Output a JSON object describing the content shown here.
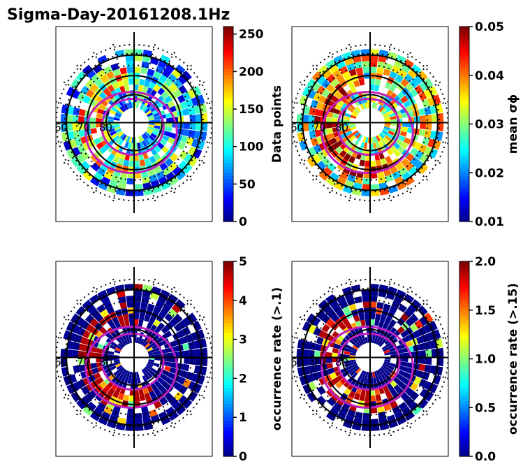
{
  "title": "Sigma-Day-20161208.1Hz",
  "colormap": "jet",
  "colors": {
    "jet": [
      "#00007f",
      "#0000ff",
      "#0080ff",
      "#00ffff",
      "#80ff80",
      "#ffff00",
      "#ff8000",
      "#ff0000",
      "#7f0000"
    ],
    "oval": "#c020c0",
    "grid": "#000000",
    "ocean": "#ffffff"
  },
  "chart_data": [
    {
      "type": "heatmap",
      "projection": "polar-mlat",
      "colorbar_label": "Data points",
      "colorbar_ticks": [
        "0",
        "50",
        "100",
        "150",
        "200",
        "250"
      ],
      "clim": [
        0,
        260
      ],
      "radial_labels": [
        "60",
        "70",
        "80"
      ],
      "dominant_level": 0.35,
      "grid": true
    },
    {
      "type": "heatmap",
      "projection": "polar-mlat",
      "colorbar_label": "mean σϕ",
      "colorbar_ticks": [
        "0.01",
        "0.02",
        "0.03",
        "0.04",
        "0.05"
      ],
      "clim": [
        0.01,
        0.05
      ],
      "radial_labels": [
        "60",
        "70",
        "80"
      ],
      "dominant_level": 0.55,
      "grid": true
    },
    {
      "type": "heatmap",
      "projection": "polar-mlat",
      "colorbar_label": "occurrence rate (>.1)",
      "colorbar_ticks": [
        "0",
        "1",
        "2",
        "3",
        "4",
        "5"
      ],
      "clim": [
        0,
        5
      ],
      "radial_labels": [
        "60",
        "70",
        "80"
      ],
      "dominant_level": 0.03,
      "grid": true
    },
    {
      "type": "heatmap",
      "projection": "polar-mlat",
      "colorbar_label": "occurrence rate (>.15)",
      "colorbar_ticks": [
        "0.0",
        "0.5",
        "1.0",
        "1.5",
        "2.0"
      ],
      "clim": [
        0,
        2
      ],
      "radial_labels": [
        "60",
        "70",
        "80"
      ],
      "dominant_level": 0.02,
      "grid": true
    }
  ]
}
